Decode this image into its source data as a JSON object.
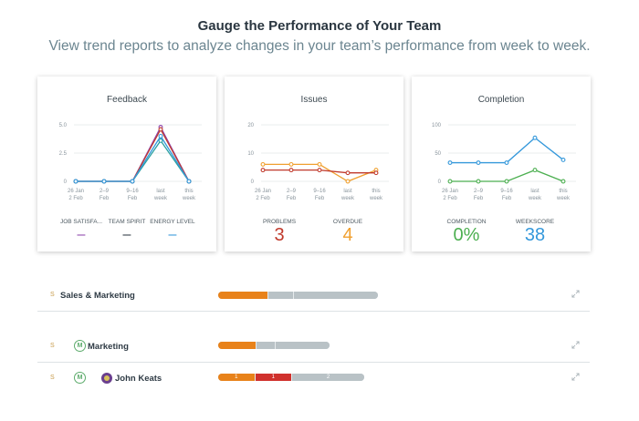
{
  "header": {
    "title": "Gauge the Performance of Your Team",
    "subtitle": "View trend reports to analyze changes in your team’s performance from week to week."
  },
  "x_labels": [
    [
      "26 Jan",
      "2 Feb"
    ],
    [
      "2–9",
      "Feb"
    ],
    [
      "9–16",
      "Feb"
    ],
    [
      "last",
      "week"
    ],
    [
      "this",
      "week"
    ]
  ],
  "cards": [
    {
      "title": "Feedback",
      "y_ticks": [
        "5.0",
        "2.5",
        "0"
      ],
      "ylim": [
        0,
        5
      ],
      "series": [
        {
          "color": "#8e44ad",
          "values": [
            0,
            0,
            0,
            4.8,
            0
          ]
        },
        {
          "color": "#c0392b",
          "values": [
            0,
            0,
            0,
            4.6,
            0
          ]
        },
        {
          "color": "#2aa0a0",
          "values": [
            0,
            0,
            0,
            3.6,
            0
          ]
        },
        {
          "color": "#3498db",
          "values": [
            0,
            0,
            0,
            4.0,
            0
          ]
        }
      ],
      "metrics": [
        {
          "label": "JOB SATISFA...",
          "value": "–",
          "color": "#8e44ad"
        },
        {
          "label": "TEAM SPIRIT",
          "value": "–",
          "color": "#2f3b45"
        },
        {
          "label": "ENERGY LEVEL",
          "value": "–",
          "color": "#3498db"
        }
      ]
    },
    {
      "title": "Issues",
      "y_ticks": [
        "20",
        "10",
        "0"
      ],
      "ylim": [
        0,
        20
      ],
      "series": [
        {
          "color": "#f0a030",
          "values": [
            6,
            6,
            6,
            0,
            4
          ]
        },
        {
          "color": "#c0392b",
          "values": [
            4,
            4,
            4,
            3,
            3
          ]
        }
      ],
      "metrics": [
        {
          "label": "PROBLEMS",
          "value": "3",
          "color": "#c0392b"
        },
        {
          "label": "OVERDUE",
          "value": "4",
          "color": "#f0a030"
        }
      ]
    },
    {
      "title": "Completion",
      "y_ticks": [
        "100",
        "50",
        "0"
      ],
      "ylim": [
        0,
        100
      ],
      "series": [
        {
          "color": "#3498db",
          "values": [
            33,
            33,
            33,
            77,
            38
          ]
        },
        {
          "color": "#4caf50",
          "values": [
            0,
            0,
            0,
            20,
            0
          ]
        }
      ],
      "metrics": [
        {
          "label": "COMPLETION",
          "value": "0%",
          "color": "#4caf50"
        },
        {
          "label": "WEEKSCORE",
          "value": "38",
          "color": "#3498db"
        }
      ]
    }
  ],
  "rows": [
    {
      "prefix": "S",
      "name": "Sales & Marketing",
      "progress": [
        {
          "fraction": 0.31,
          "color": "#e8821a",
          "label": ""
        },
        {
          "fraction": 0.16,
          "color": "#b9c2c6",
          "label": ""
        },
        {
          "fraction": 0.53,
          "color": "#b9c2c6",
          "label": ""
        }
      ]
    },
    {
      "prefix": "S",
      "icon_letter": "M",
      "name": "Marketing",
      "progress": [
        {
          "fraction": 0.34,
          "color": "#e8821a",
          "label": ""
        },
        {
          "fraction": 0.17,
          "color": "#b9c2c6",
          "label": ""
        },
        {
          "fraction": 0.49,
          "color": "#b9c2c6",
          "label": ""
        }
      ]
    },
    {
      "prefix": "S",
      "icon_letter": "M",
      "name": "John Keats",
      "progress": [
        {
          "fraction": 0.25,
          "color": "#e8821a",
          "label": "1"
        },
        {
          "fraction": 0.25,
          "color": "#d0312d",
          "label": "1"
        },
        {
          "fraction": 0.5,
          "color": "#b9c2c6",
          "label": "2"
        }
      ]
    }
  ]
}
